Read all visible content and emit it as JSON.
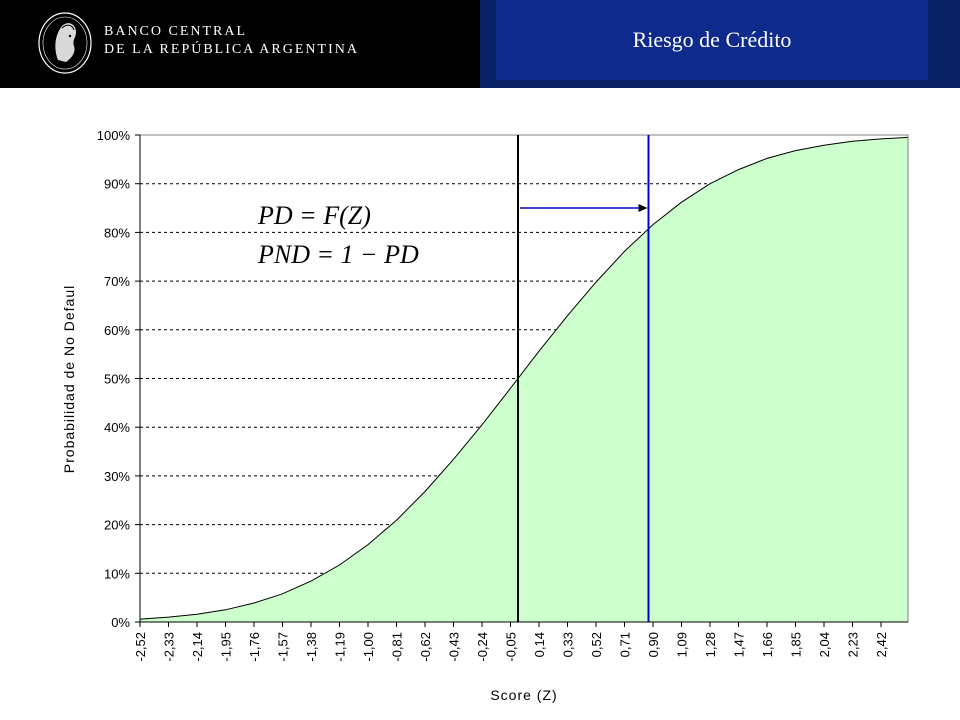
{
  "header": {
    "bank_name_line1": "BANCO CENTRAL",
    "bank_name_line2": "DE LA REPÚBLICA ARGENTINA",
    "title": "Riesgo de Crédito"
  },
  "chart_data": {
    "type": "area",
    "xlabel": "Score (Z)",
    "ylabel": "Probabilidad de No Defaul",
    "x_tick_labels": [
      "-2,52",
      "-2,33",
      "-2,14",
      "-1,95",
      "-1,76",
      "-1,57",
      "-1,38",
      "-1,19",
      "-1,00",
      "-0,81",
      "-0,62",
      "-0,43",
      "-0,24",
      "-0,05",
      "0,14",
      "0,33",
      "0,52",
      "0,71",
      "0,90",
      "1,09",
      "1,28",
      "1,47",
      "1,66",
      "1,85",
      "2,04",
      "2,23",
      "2,42"
    ],
    "y_tick_labels": [
      "0%",
      "10%",
      "20%",
      "30%",
      "40%",
      "50%",
      "60%",
      "70%",
      "80%",
      "90%",
      "100%"
    ],
    "xlim": [
      -2.52,
      2.6
    ],
    "ylim": [
      0,
      1
    ],
    "grid": true,
    "series": [
      {
        "x": [
          -2.52,
          -2.33,
          -2.14,
          -1.95,
          -1.76,
          -1.57,
          -1.38,
          -1.19,
          -1.0,
          -0.81,
          -0.62,
          -0.43,
          -0.24,
          -0.05,
          0.14,
          0.33,
          0.52,
          0.71,
          0.9,
          1.09,
          1.28,
          1.47,
          1.66,
          1.85,
          2.04,
          2.23,
          2.42,
          2.6
        ],
        "y": [
          0.006,
          0.01,
          0.016,
          0.025,
          0.039,
          0.058,
          0.084,
          0.117,
          0.159,
          0.209,
          0.268,
          0.334,
          0.405,
          0.48,
          0.556,
          0.629,
          0.698,
          0.761,
          0.816,
          0.862,
          0.9,
          0.929,
          0.952,
          0.968,
          0.979,
          0.987,
          0.992,
          0.995
        ]
      }
    ],
    "annotations": {
      "black_line_x": 0.0,
      "blue_line_x": 0.87,
      "arrow_y": 0.85,
      "formula_line1": "PD = F(Z)",
      "formula_line2": "PND = 1 − PD"
    },
    "colors": {
      "fill": "#ccffcc",
      "black_line": "#000000",
      "blue_line": "#0000cc",
      "grid": "#000000"
    }
  }
}
